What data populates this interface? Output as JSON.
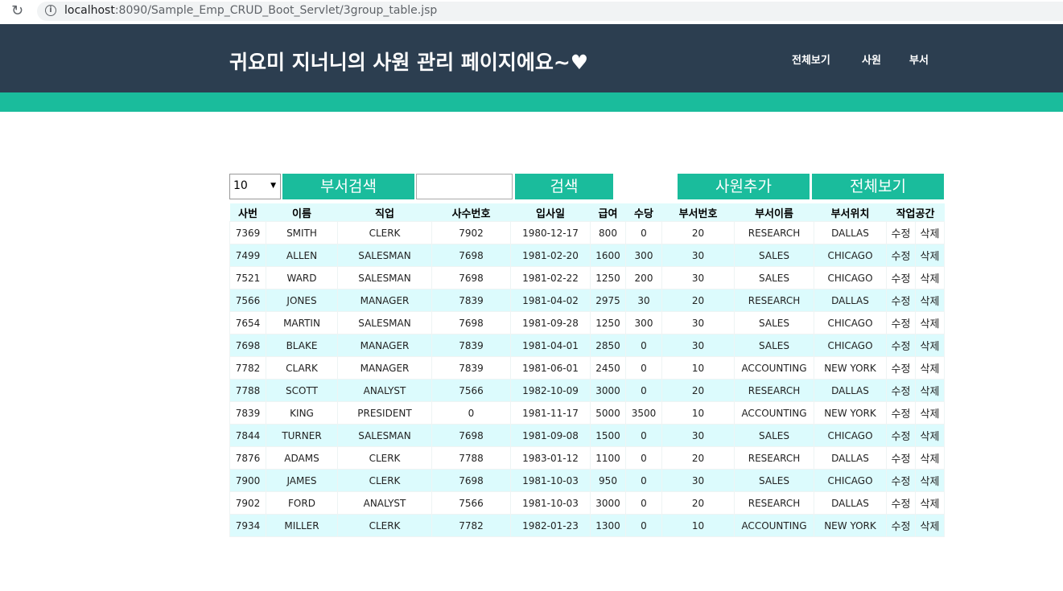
{
  "browser": {
    "url_host": "localhost",
    "url_path": ":8090/Sample_Emp_CRUD_Boot_Servlet/3group_table.jsp"
  },
  "header": {
    "title": "귀요미 지너니의 사원 관리 페이지에요~♥",
    "nav": [
      "전체보기",
      "사원",
      "부서"
    ]
  },
  "controls": {
    "page_size": "10",
    "dept_search": "부서검색",
    "search_value": "",
    "search": "검색",
    "add_emp": "사원추가",
    "view_all": "전체보기"
  },
  "table": {
    "headers": [
      "사번",
      "이름",
      "직업",
      "사수번호",
      "입사일",
      "급여",
      "수당",
      "부서번호",
      "부서이름",
      "부서위치",
      "작업공간"
    ],
    "edit_label": "수정",
    "delete_label": "삭제",
    "rows": [
      [
        "7369",
        "SMITH",
        "CLERK",
        "7902",
        "1980-12-17",
        "800",
        "0",
        "20",
        "RESEARCH",
        "DALLAS"
      ],
      [
        "7499",
        "ALLEN",
        "SALESMAN",
        "7698",
        "1981-02-20",
        "1600",
        "300",
        "30",
        "SALES",
        "CHICAGO"
      ],
      [
        "7521",
        "WARD",
        "SALESMAN",
        "7698",
        "1981-02-22",
        "1250",
        "200",
        "30",
        "SALES",
        "CHICAGO"
      ],
      [
        "7566",
        "JONES",
        "MANAGER",
        "7839",
        "1981-04-02",
        "2975",
        "30",
        "20",
        "RESEARCH",
        "DALLAS"
      ],
      [
        "7654",
        "MARTIN",
        "SALESMAN",
        "7698",
        "1981-09-28",
        "1250",
        "300",
        "30",
        "SALES",
        "CHICAGO"
      ],
      [
        "7698",
        "BLAKE",
        "MANAGER",
        "7839",
        "1981-04-01",
        "2850",
        "0",
        "30",
        "SALES",
        "CHICAGO"
      ],
      [
        "7782",
        "CLARK",
        "MANAGER",
        "7839",
        "1981-06-01",
        "2450",
        "0",
        "10",
        "ACCOUNTING",
        "NEW YORK"
      ],
      [
        "7788",
        "SCOTT",
        "ANALYST",
        "7566",
        "1982-10-09",
        "3000",
        "0",
        "20",
        "RESEARCH",
        "DALLAS"
      ],
      [
        "7839",
        "KING",
        "PRESIDENT",
        "0",
        "1981-11-17",
        "5000",
        "3500",
        "10",
        "ACCOUNTING",
        "NEW YORK"
      ],
      [
        "7844",
        "TURNER",
        "SALESMAN",
        "7698",
        "1981-09-08",
        "1500",
        "0",
        "30",
        "SALES",
        "CHICAGO"
      ],
      [
        "7876",
        "ADAMS",
        "CLERK",
        "7788",
        "1983-01-12",
        "1100",
        "0",
        "20",
        "RESEARCH",
        "DALLAS"
      ],
      [
        "7900",
        "JAMES",
        "CLERK",
        "7698",
        "1981-10-03",
        "950",
        "0",
        "30",
        "SALES",
        "CHICAGO"
      ],
      [
        "7902",
        "FORD",
        "ANALYST",
        "7566",
        "1981-10-03",
        "3000",
        "0",
        "20",
        "RESEARCH",
        "DALLAS"
      ],
      [
        "7934",
        "MILLER",
        "CLERK",
        "7782",
        "1982-01-23",
        "1300",
        "0",
        "10",
        "ACCOUNTING",
        "NEW YORK"
      ]
    ]
  }
}
